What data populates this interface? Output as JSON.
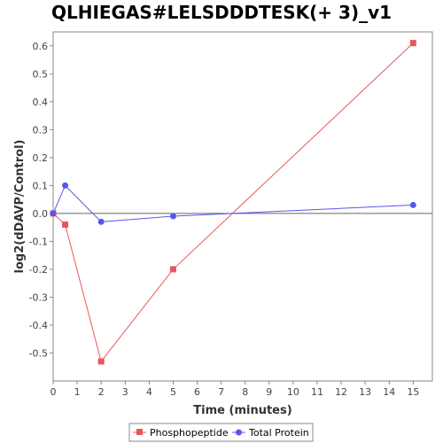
{
  "chart_data": {
    "type": "line",
    "title": "QLHIEGAS#LELSDDDTESK(+ 3)_v1",
    "xlabel": "Time (minutes)",
    "ylabel": "log2(dDAVP/Control)",
    "xlim": [
      0,
      15.8
    ],
    "ylim": [
      -0.6,
      0.65
    ],
    "x_ticks": [
      0,
      1,
      2,
      3,
      4,
      5,
      6,
      7,
      8,
      9,
      10,
      11,
      12,
      13,
      14,
      15
    ],
    "y_ticks": [
      -0.5,
      -0.4,
      -0.3,
      -0.2,
      -0.1,
      0.0,
      0.1,
      0.2,
      0.3,
      0.4,
      0.5,
      0.6
    ],
    "y_tick_labels": [
      "-0.5",
      "-0.4",
      "-0.3",
      "-0.2",
      "-0.1",
      "0.0",
      "0.1",
      "0.2",
      "0.3",
      "0.4",
      "0.5",
      "0.6"
    ],
    "grid": false,
    "zero_line": true,
    "legend_position": "bottom",
    "series": [
      {
        "name": "Phosphopeptide",
        "color": "#e8585a",
        "marker": "square",
        "x": [
          0,
          0.5,
          2,
          5,
          15
        ],
        "y": [
          0.0,
          -0.04,
          -0.53,
          -0.2,
          0.61
        ]
      },
      {
        "name": "Total Protein",
        "color": "#5757ec",
        "marker": "circle",
        "x": [
          0,
          0.5,
          2,
          5,
          15
        ],
        "y": [
          0.0,
          0.1,
          -0.03,
          -0.01,
          0.03
        ]
      }
    ]
  }
}
